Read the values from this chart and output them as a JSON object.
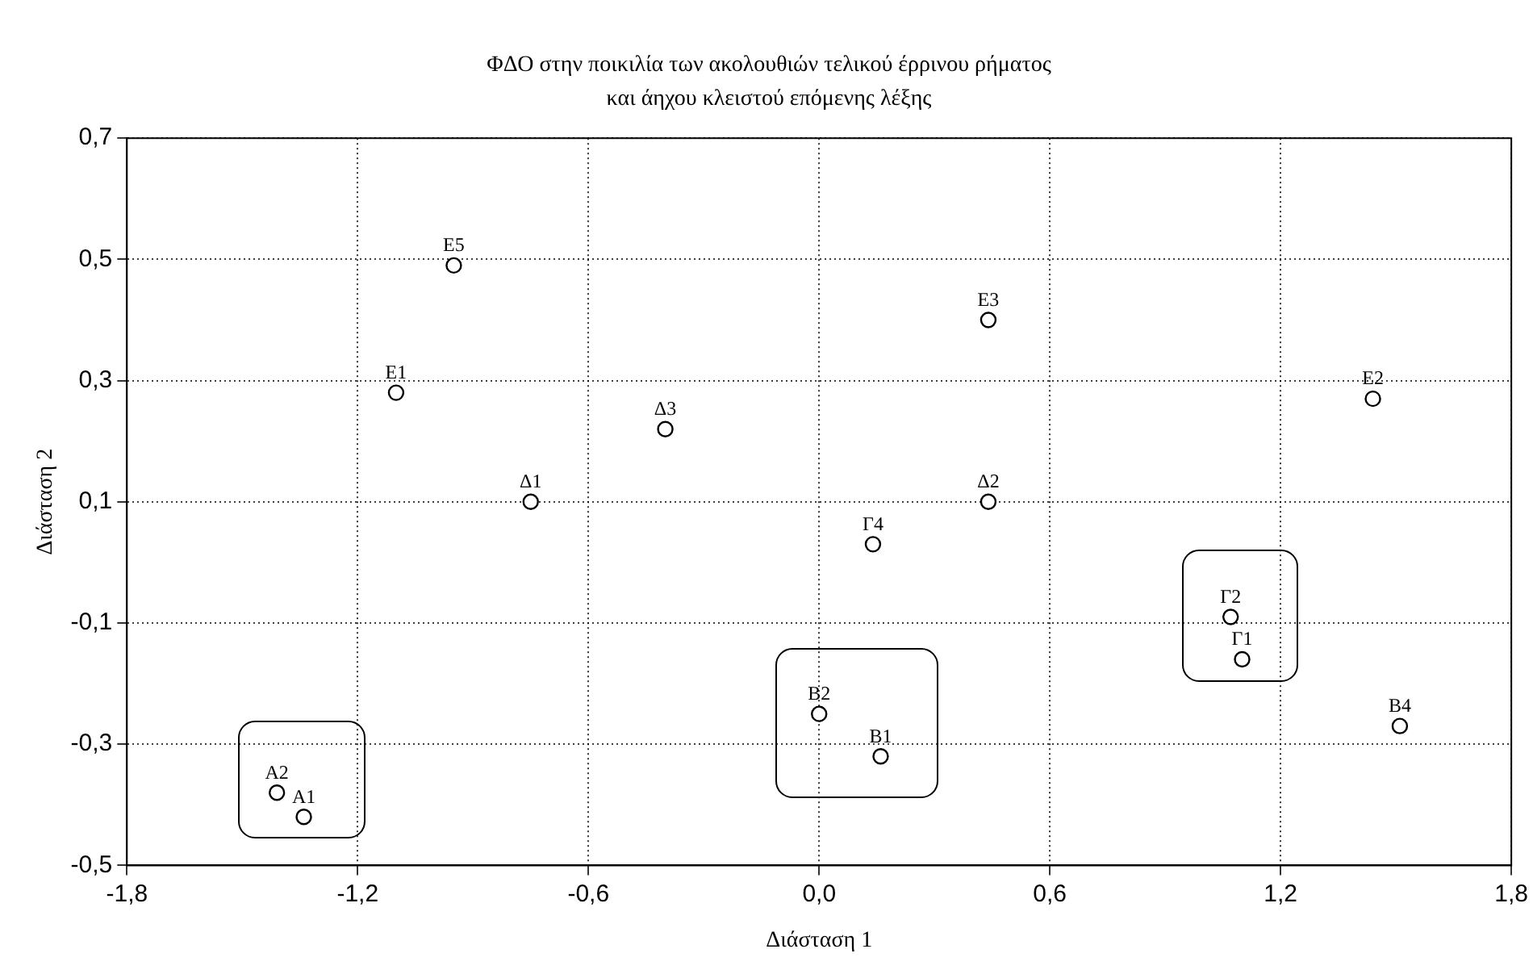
{
  "chart_data": {
    "type": "scatter",
    "title": "ΦΔΟ στην ποικιλία των ακολουθιών τελικού έρρινου ρήματος",
    "subtitle": "και άηχου κλειστού επόμενης λέξης",
    "xlabel": "Διάσταση 1",
    "ylabel": "Διάσταση 2",
    "xlim": [
      -1.8,
      1.8
    ],
    "xticks": [
      {
        "value": -1.8,
        "label": "-1,8"
      },
      {
        "value": -1.2,
        "label": "-1,2"
      },
      {
        "value": -0.6,
        "label": "-0,6"
      },
      {
        "value": 0,
        "label": "0,0"
      },
      {
        "value": 0.6,
        "label": "0,6"
      },
      {
        "value": 1.2,
        "label": "1,2"
      },
      {
        "value": 1.8,
        "label": "1,8"
      }
    ],
    "ylim": [
      -0.5,
      0.7
    ],
    "yticks": [
      {
        "value": -0.5,
        "label": "-0,5"
      },
      {
        "value": -0.3,
        "label": "-0,3"
      },
      {
        "value": -0.1,
        "label": "-0,1"
      },
      {
        "value": 0.1,
        "label": "0,1"
      },
      {
        "value": 0.3,
        "label": "0,3"
      },
      {
        "value": 0.5,
        "label": "0,5"
      },
      {
        "value": 0.7,
        "label": "0,7"
      }
    ],
    "grid": true,
    "legend": false,
    "marker": "circle",
    "series": [
      {
        "name": "E5",
        "color": "#000000",
        "x": [
          -0.95
        ],
        "values": [
          0.49
        ]
      },
      {
        "name": "E1",
        "color": "#000000",
        "x": [
          -1.1
        ],
        "values": [
          0.28
        ]
      },
      {
        "name": "Δ1",
        "color": "#000000",
        "x": [
          -0.75
        ],
        "values": [
          0.1
        ]
      },
      {
        "name": "Δ3",
        "color": "#000000",
        "x": [
          -0.4
        ],
        "values": [
          0.22
        ]
      },
      {
        "name": "E3",
        "color": "#000000",
        "x": [
          0.44
        ],
        "values": [
          0.4
        ]
      },
      {
        "name": "E2",
        "color": "#000000",
        "x": [
          1.44
        ],
        "values": [
          0.27
        ]
      },
      {
        "name": "Δ2",
        "color": "#000000",
        "x": [
          0.44
        ],
        "values": [
          0.1
        ]
      },
      {
        "name": "Γ4",
        "color": "#000000",
        "x": [
          0.14
        ],
        "values": [
          0.03
        ]
      },
      {
        "name": "Γ2",
        "color": "#000000",
        "x": [
          1.07
        ],
        "values": [
          -0.09
        ]
      },
      {
        "name": "Γ1",
        "color": "#000000",
        "x": [
          1.1
        ],
        "values": [
          -0.16
        ]
      },
      {
        "name": "B2",
        "color": "#000000",
        "x": [
          0
        ],
        "values": [
          -0.25
        ]
      },
      {
        "name": "B1",
        "color": "#000000",
        "x": [
          0.16
        ],
        "values": [
          -0.32
        ]
      },
      {
        "name": "B4",
        "color": "#000000",
        "x": [
          1.51
        ],
        "values": [
          -0.27
        ]
      },
      {
        "name": "A2",
        "color": "#000000",
        "x": [
          -1.41
        ],
        "values": [
          -0.38
        ]
      },
      {
        "name": "A1",
        "color": "#000000",
        "x": [
          -1.34
        ],
        "values": [
          -0.42
        ]
      }
    ]
  }
}
